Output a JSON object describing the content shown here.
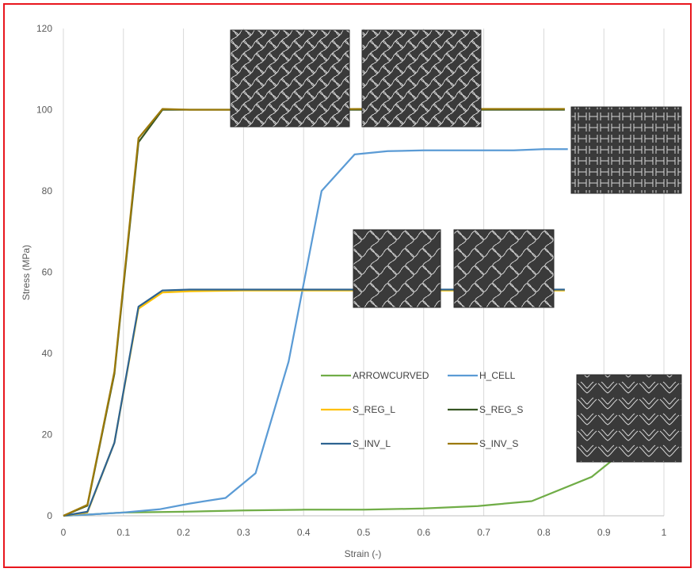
{
  "chart_data": {
    "type": "line",
    "title": "",
    "xlabel": "Strain (-)",
    "ylabel": "Stress (MPa)",
    "xlim": [
      0,
      1
    ],
    "ylim": [
      0,
      120
    ],
    "x_ticks": [
      "0",
      "0.1",
      "0.2",
      "0.3",
      "0.4",
      "0.5",
      "0.6",
      "0.7",
      "0.8",
      "0.9",
      "1"
    ],
    "y_ticks": [
      "0",
      "20",
      "40",
      "60",
      "80",
      "100",
      "120"
    ],
    "grid": "vertical",
    "legend_position": "inside-bottom-center",
    "series": [
      {
        "name": "ARROWCURVED",
        "color": "#70ad47",
        "x": [
          0,
          0.04,
          0.1,
          0.2,
          0.3,
          0.4,
          0.5,
          0.6,
          0.69,
          0.78,
          0.88,
          0.95
        ],
        "y": [
          0,
          0.3,
          0.8,
          1.0,
          1.3,
          1.5,
          1.5,
          1.8,
          2.4,
          3.6,
          9.6,
          18
        ]
      },
      {
        "name": "H_CELL",
        "color": "#5b9bd5",
        "x": [
          0,
          0.04,
          0.1,
          0.16,
          0.21,
          0.27,
          0.32,
          0.375,
          0.43,
          0.485,
          0.54,
          0.6,
          0.7,
          0.75,
          0.8,
          0.84
        ],
        "y": [
          0,
          0.3,
          0.8,
          1.6,
          3.0,
          4.4,
          10.5,
          38,
          80,
          89,
          89.8,
          90,
          90,
          90,
          90.3,
          90.3
        ]
      },
      {
        "name": "S_REG_L",
        "color": "#ffc000",
        "x": [
          0,
          0.04,
          0.085,
          0.125,
          0.165,
          0.21,
          0.3,
          0.5,
          0.7,
          0.835
        ],
        "y": [
          0,
          0.8,
          18,
          51,
          55,
          55.3,
          55.5,
          55.5,
          55.5,
          55.5
        ]
      },
      {
        "name": "S_REG_S",
        "color": "#375623",
        "x": [
          0,
          0.04,
          0.085,
          0.125,
          0.165,
          0.21,
          0.3,
          0.5,
          0.7,
          0.835
        ],
        "y": [
          0,
          2.5,
          35,
          92,
          100,
          100,
          100,
          100,
          100,
          100
        ]
      },
      {
        "name": "S_INV_L",
        "color": "#2e6391",
        "x": [
          0,
          0.04,
          0.085,
          0.125,
          0.165,
          0.21,
          0.3,
          0.5,
          0.7,
          0.835
        ],
        "y": [
          0,
          1.0,
          18,
          51.5,
          55.5,
          55.7,
          55.7,
          55.7,
          55.7,
          55.7
        ]
      },
      {
        "name": "S_INV_S",
        "color": "#9c7a0a",
        "x": [
          0,
          0.04,
          0.085,
          0.125,
          0.165,
          0.21,
          0.3,
          0.5,
          0.7,
          0.835
        ],
        "y": [
          0,
          2.7,
          35.5,
          93,
          100.2,
          100,
          100,
          100.2,
          100.2,
          100.2
        ]
      }
    ],
    "inset_images": [
      {
        "name": "s-inv-s-pattern",
        "anchor": "upper-middle"
      },
      {
        "name": "s-reg-s-pattern",
        "anchor": "upper-middle"
      },
      {
        "name": "h-cell-pattern",
        "anchor": "upper-right"
      },
      {
        "name": "s-inv-l-pattern",
        "anchor": "middle"
      },
      {
        "name": "s-reg-l-pattern",
        "anchor": "middle"
      },
      {
        "name": "arrowcurved-pattern",
        "anchor": "lower-right"
      }
    ]
  },
  "colors": {
    "frame": "#e8161d",
    "grid": "#d9d9d9",
    "inset_bg": "#3a3a3a"
  }
}
